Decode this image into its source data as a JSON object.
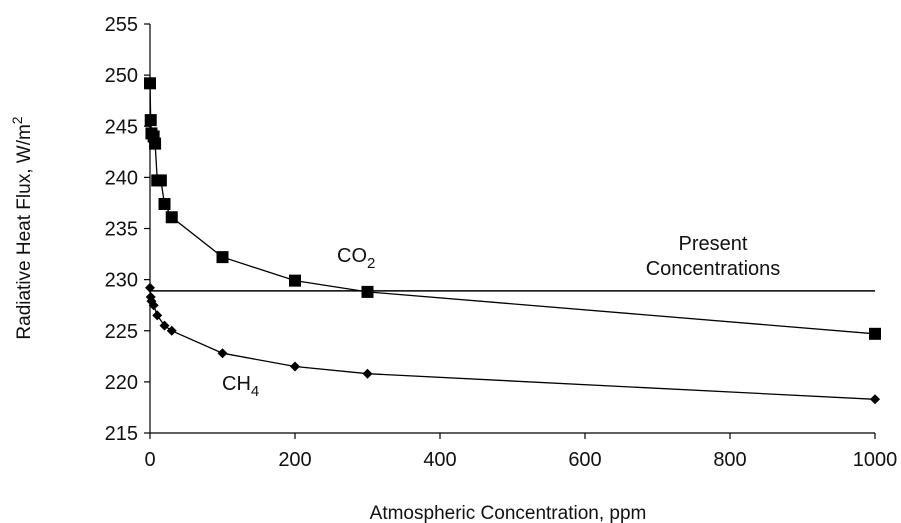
{
  "chart_data": {
    "type": "line",
    "xlabel": "Atmospheric Concentration, ppm",
    "ylabel_main": "Radiative Heat Flux, W/m",
    "ylabel_sup": "2",
    "xlim": [
      0,
      1000
    ],
    "ylim": [
      215,
      255
    ],
    "x_ticks": [
      0,
      200,
      400,
      600,
      800,
      1000
    ],
    "y_ticks": [
      215,
      220,
      225,
      230,
      235,
      240,
      245,
      250,
      255
    ],
    "grid": false,
    "series": [
      {
        "name": "CO2",
        "label_main": "CO",
        "label_sub": "2",
        "marker": "square",
        "color": "#000000",
        "x": [
          0,
          1,
          2,
          5,
          7,
          10,
          15,
          20,
          30,
          100,
          200,
          300,
          1000
        ],
        "y": [
          249.2,
          245.6,
          244.3,
          244.0,
          243.3,
          239.7,
          239.7,
          237.4,
          236.1,
          232.2,
          229.9,
          228.8,
          224.7
        ]
      },
      {
        "name": "CH4",
        "label_main": "CH",
        "label_sub": "4",
        "marker": "diamond",
        "color": "#000000",
        "x": [
          0,
          1,
          2,
          5,
          10,
          20,
          30,
          100,
          200,
          300,
          1000
        ],
        "y": [
          229.2,
          228.3,
          227.9,
          227.5,
          226.5,
          225.5,
          225.0,
          222.8,
          221.5,
          220.8,
          218.3
        ]
      }
    ],
    "reference_line": {
      "y": 228.9,
      "x_range": [
        0,
        1000
      ],
      "label_line1": "Present",
      "label_line2": "Concentrations"
    }
  }
}
